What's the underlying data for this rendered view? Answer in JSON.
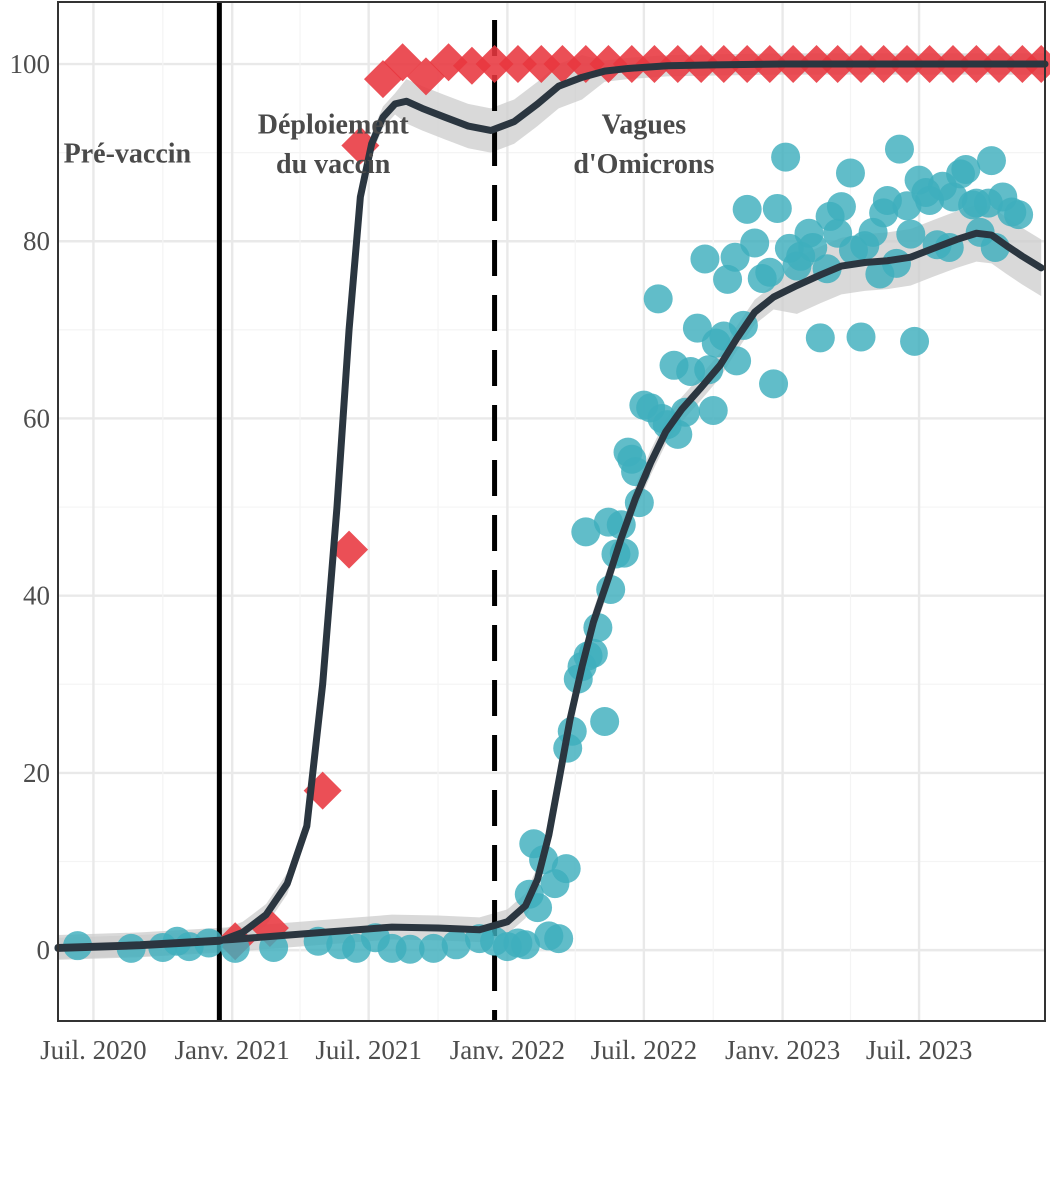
{
  "chart_data": {
    "type": "scatter",
    "title": "",
    "xlabel": "",
    "ylabel": "",
    "x_range": [
      "2020-05-15",
      "2023-12-15"
    ],
    "ylim": [
      -8,
      107
    ],
    "grid": true,
    "x_ticks": [
      {
        "date": "2020-07-01",
        "label": "Juil. 2020"
      },
      {
        "date": "2021-01-01",
        "label": "Janv. 2021"
      },
      {
        "date": "2021-07-01",
        "label": "Juil. 2021"
      },
      {
        "date": "2022-01-01",
        "label": "Janv. 2022"
      },
      {
        "date": "2022-07-01",
        "label": "Juil. 2022"
      },
      {
        "date": "2023-01-01",
        "label": "Janv. 2023"
      },
      {
        "date": "2023-07-01",
        "label": "Juil. 2023"
      }
    ],
    "y_ticks": [
      0,
      20,
      40,
      60,
      80,
      100
    ],
    "y_tick_labels": [
      "0",
      "20",
      "40",
      "60",
      "80",
      "100"
    ],
    "vlines": [
      {
        "date": "2020-12-15",
        "style": "solid"
      },
      {
        "date": "2021-12-15",
        "style": "dashed"
      }
    ],
    "annotations": [
      {
        "lines": [
          "Pré-vaccin"
        ],
        "date": "2020-08-15",
        "y": 90
      },
      {
        "lines": [
          "Déploiement",
          "du vaccin"
        ],
        "date": "2021-05-15",
        "y": 91.5
      },
      {
        "lines": [
          "Vagues",
          "d'Omicrons"
        ],
        "date": "2022-07-01",
        "y": 91.5
      }
    ],
    "colors": {
      "series_1": "#e8373f",
      "series_2": "#3eafbd",
      "trend": "#2b3640",
      "band": "#cccccc"
    },
    "series": [
      {
        "marker": "diamond",
        "color": "#e8373f",
        "points": [
          [
            "2021-01-05",
            1
          ],
          [
            "2021-02-20",
            2.5
          ],
          [
            "2021-05-01",
            18
          ],
          [
            "2021-06-05",
            45.2
          ],
          [
            "2021-06-20",
            90.8
          ],
          [
            "2021-07-20",
            98.3
          ],
          [
            "2021-08-15",
            100.2
          ],
          [
            "2021-09-15",
            98.6
          ],
          [
            "2021-10-15",
            100.2
          ],
          [
            "2021-11-15",
            99.8
          ],
          [
            "2021-12-15",
            100
          ],
          [
            "2022-01-15",
            100
          ],
          [
            "2022-02-15",
            100
          ],
          [
            "2022-03-15",
            100
          ],
          [
            "2022-04-15",
            100
          ],
          [
            "2022-05-15",
            100
          ],
          [
            "2022-06-15",
            100
          ],
          [
            "2022-07-15",
            100
          ],
          [
            "2022-08-15",
            100
          ],
          [
            "2022-09-15",
            100
          ],
          [
            "2022-10-15",
            100
          ],
          [
            "2022-11-15",
            100
          ],
          [
            "2022-12-15",
            100
          ],
          [
            "2023-01-15",
            100
          ],
          [
            "2023-02-15",
            100
          ],
          [
            "2023-03-15",
            100
          ],
          [
            "2023-04-15",
            100
          ],
          [
            "2023-05-15",
            100
          ],
          [
            "2023-06-15",
            100
          ],
          [
            "2023-07-15",
            100
          ],
          [
            "2023-08-15",
            100
          ],
          [
            "2023-09-15",
            100
          ],
          [
            "2023-10-15",
            100
          ],
          [
            "2023-11-15",
            100
          ],
          [
            "2023-12-10",
            100
          ]
        ],
        "trend": [
          [
            "2020-05-15",
            0.2
          ],
          [
            "2020-09-01",
            0.5
          ],
          [
            "2020-12-15",
            1.0
          ],
          [
            "2021-01-15",
            2
          ],
          [
            "2021-02-15",
            4
          ],
          [
            "2021-03-15",
            7.5
          ],
          [
            "2021-04-10",
            14
          ],
          [
            "2021-05-01",
            30
          ],
          [
            "2021-05-20",
            50
          ],
          [
            "2021-06-05",
            70
          ],
          [
            "2021-06-20",
            85
          ],
          [
            "2021-07-05",
            91
          ],
          [
            "2021-07-20",
            94
          ],
          [
            "2021-08-05",
            95.5
          ],
          [
            "2021-08-20",
            95.8
          ],
          [
            "2021-09-10",
            95
          ],
          [
            "2021-10-10",
            94
          ],
          [
            "2021-11-10",
            93
          ],
          [
            "2021-12-10",
            92.5
          ],
          [
            "2022-01-10",
            93.5
          ],
          [
            "2022-02-10",
            95.5
          ],
          [
            "2022-03-10",
            97.5
          ],
          [
            "2022-04-10",
            98.5
          ],
          [
            "2022-05-10",
            99.2
          ],
          [
            "2022-06-10",
            99.5
          ],
          [
            "2022-08-01",
            99.8
          ],
          [
            "2022-10-01",
            99.9
          ],
          [
            "2023-01-01",
            100
          ],
          [
            "2023-06-01",
            100
          ],
          [
            "2023-12-15",
            100
          ]
        ]
      },
      {
        "marker": "circle",
        "color": "#3eafbd",
        "points": [
          [
            "2020-06-10",
            0.5
          ],
          [
            "2020-08-20",
            0.2
          ],
          [
            "2020-10-01",
            0.3
          ],
          [
            "2020-10-20",
            1.0
          ],
          [
            "2020-11-05",
            0.4
          ],
          [
            "2020-12-01",
            0.8
          ],
          [
            "2021-01-05",
            0.2
          ],
          [
            "2021-02-25",
            0.3
          ],
          [
            "2021-04-25",
            1.0
          ],
          [
            "2021-05-25",
            0.6
          ],
          [
            "2021-06-15",
            0.2
          ],
          [
            "2021-07-10",
            1.4
          ],
          [
            "2021-08-01",
            0.2
          ],
          [
            "2021-08-25",
            0.1
          ],
          [
            "2021-09-25",
            0.2
          ],
          [
            "2021-10-25",
            0.6
          ],
          [
            "2021-11-25",
            1.3
          ],
          [
            "2021-12-15",
            1.0
          ],
          [
            "2022-01-01",
            0.4
          ],
          [
            "2022-01-15",
            0.8
          ],
          [
            "2022-01-25",
            0.6
          ],
          [
            "2022-01-30",
            6.3
          ],
          [
            "2022-02-05",
            12
          ],
          [
            "2022-02-10",
            4.8
          ],
          [
            "2022-02-18",
            10.2
          ],
          [
            "2022-02-25",
            1.6
          ],
          [
            "2022-03-05",
            7.5
          ],
          [
            "2022-03-10",
            1.3
          ],
          [
            "2022-03-20",
            9.2
          ],
          [
            "2022-03-22",
            22.8
          ],
          [
            "2022-03-28",
            24.7
          ],
          [
            "2022-04-05",
            30.6
          ],
          [
            "2022-04-10",
            32
          ],
          [
            "2022-04-15",
            47.2
          ],
          [
            "2022-04-18",
            33.2
          ],
          [
            "2022-04-25",
            33.5
          ],
          [
            "2022-05-01",
            36.4
          ],
          [
            "2022-05-10",
            25.8
          ],
          [
            "2022-05-15",
            48.3
          ],
          [
            "2022-05-18",
            40.7
          ],
          [
            "2022-05-25",
            44.7
          ],
          [
            "2022-06-01",
            48.0
          ],
          [
            "2022-06-05",
            44.8
          ],
          [
            "2022-06-10",
            56.2
          ],
          [
            "2022-06-15",
            55.4
          ],
          [
            "2022-06-20",
            54.0
          ],
          [
            "2022-06-25",
            50.5
          ],
          [
            "2022-07-01",
            61.5
          ],
          [
            "2022-07-10",
            61.2
          ],
          [
            "2022-07-20",
            73.5
          ],
          [
            "2022-07-25",
            60.0
          ],
          [
            "2022-08-01",
            59.3
          ],
          [
            "2022-08-10",
            66.0
          ],
          [
            "2022-08-15",
            58.2
          ],
          [
            "2022-08-25",
            60.7
          ],
          [
            "2022-09-01",
            65.3
          ],
          [
            "2022-09-10",
            70.2
          ],
          [
            "2022-09-20",
            78.0
          ],
          [
            "2022-09-25",
            65.5
          ],
          [
            "2022-10-01",
            60.9
          ],
          [
            "2022-10-05",
            68.5
          ],
          [
            "2022-10-15",
            69.3
          ],
          [
            "2022-10-20",
            75.7
          ],
          [
            "2022-10-30",
            78.2
          ],
          [
            "2022-11-01",
            66.5
          ],
          [
            "2022-11-10",
            70.5
          ],
          [
            "2022-11-15",
            83.6
          ],
          [
            "2022-11-25",
            79.8
          ],
          [
            "2022-12-05",
            75.8
          ],
          [
            "2022-12-15",
            76.5
          ],
          [
            "2022-12-20",
            63.9
          ],
          [
            "2022-12-25",
            83.7
          ],
          [
            "2023-01-05",
            89.5
          ],
          [
            "2023-01-10",
            79.2
          ],
          [
            "2023-01-20",
            77.2
          ],
          [
            "2023-01-25",
            78.3
          ],
          [
            "2023-02-05",
            80.9
          ],
          [
            "2023-02-10",
            79.3
          ],
          [
            "2023-02-20",
            69.1
          ],
          [
            "2023-03-01",
            76.9
          ],
          [
            "2023-03-05",
            82.8
          ],
          [
            "2023-03-15",
            80.9
          ],
          [
            "2023-03-20",
            83.9
          ],
          [
            "2023-04-01",
            87.7
          ],
          [
            "2023-04-05",
            79.0
          ],
          [
            "2023-04-15",
            69.2
          ],
          [
            "2023-04-20",
            79.5
          ],
          [
            "2023-05-01",
            81.0
          ],
          [
            "2023-05-10",
            76.3
          ],
          [
            "2023-05-15",
            83.2
          ],
          [
            "2023-05-20",
            84.6
          ],
          [
            "2023-06-01",
            77.5
          ],
          [
            "2023-06-05",
            90.4
          ],
          [
            "2023-06-15",
            84.0
          ],
          [
            "2023-06-20",
            80.8
          ],
          [
            "2023-06-25",
            68.7
          ],
          [
            "2023-07-01",
            86.9
          ],
          [
            "2023-07-10",
            85.5
          ],
          [
            "2023-07-15",
            84.6
          ],
          [
            "2023-07-25",
            79.6
          ],
          [
            "2023-08-01",
            86.2
          ],
          [
            "2023-08-10",
            79.3
          ],
          [
            "2023-08-15",
            85.0
          ],
          [
            "2023-08-25",
            87.6
          ],
          [
            "2023-09-01",
            88.1
          ],
          [
            "2023-09-10",
            84.1
          ],
          [
            "2023-09-15",
            84.3
          ],
          [
            "2023-09-20",
            81.0
          ],
          [
            "2023-10-01",
            84.3
          ],
          [
            "2023-10-05",
            89.1
          ],
          [
            "2023-10-10",
            79.3
          ],
          [
            "2023-10-20",
            85.0
          ],
          [
            "2023-11-01",
            83.3
          ],
          [
            "2023-11-10",
            83.0
          ]
        ],
        "trend": [
          [
            "2020-05-15",
            0.3
          ],
          [
            "2020-09-01",
            0.6
          ],
          [
            "2021-01-01",
            1.2
          ],
          [
            "2021-05-01",
            2.0
          ],
          [
            "2021-08-01",
            2.6
          ],
          [
            "2021-10-01",
            2.5
          ],
          [
            "2021-11-25",
            2.3
          ],
          [
            "2022-01-01",
            3.2
          ],
          [
            "2022-01-25",
            5
          ],
          [
            "2022-02-10",
            8
          ],
          [
            "2022-02-25",
            13
          ],
          [
            "2022-03-10",
            19
          ],
          [
            "2022-03-25",
            26
          ],
          [
            "2022-04-10",
            32
          ],
          [
            "2022-04-25",
            37
          ],
          [
            "2022-05-15",
            42
          ],
          [
            "2022-06-01",
            46.5
          ],
          [
            "2022-06-20",
            51
          ],
          [
            "2022-07-10",
            55
          ],
          [
            "2022-07-30",
            58.5
          ],
          [
            "2022-08-20",
            61
          ],
          [
            "2022-09-15",
            63.5
          ],
          [
            "2022-10-10",
            66
          ],
          [
            "2022-11-01",
            69
          ],
          [
            "2022-11-25",
            72
          ],
          [
            "2022-12-20",
            73.7
          ],
          [
            "2023-01-20",
            75
          ],
          [
            "2023-02-20",
            76.2
          ],
          [
            "2023-03-20",
            77.2
          ],
          [
            "2023-04-20",
            77.6
          ],
          [
            "2023-05-20",
            77.8
          ],
          [
            "2023-06-20",
            78.2
          ],
          [
            "2023-07-20",
            79.2
          ],
          [
            "2023-08-20",
            80.2
          ],
          [
            "2023-09-15",
            80.9
          ],
          [
            "2023-10-05",
            80.7
          ],
          [
            "2023-10-25",
            79.5
          ],
          [
            "2023-11-15",
            78.3
          ],
          [
            "2023-12-10",
            77
          ]
        ]
      }
    ]
  }
}
